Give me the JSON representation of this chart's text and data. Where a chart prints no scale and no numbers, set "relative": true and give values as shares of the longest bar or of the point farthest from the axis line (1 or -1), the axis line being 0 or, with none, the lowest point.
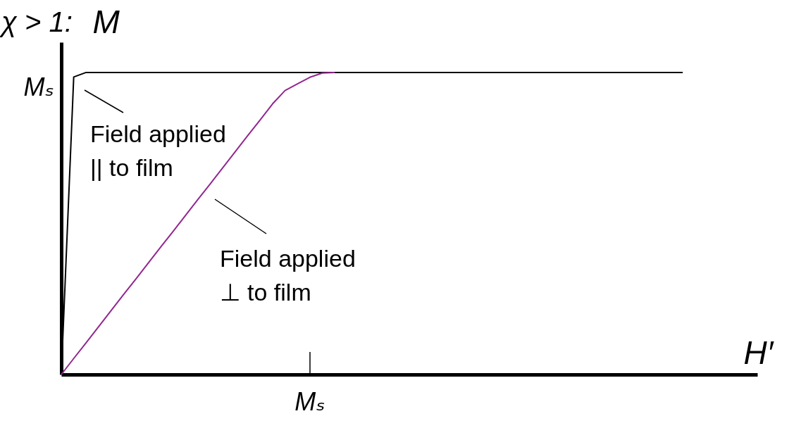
{
  "chart_data": {
    "type": "line",
    "title": "χ > 1:",
    "xlabel": "H′",
    "ylabel": "M",
    "relative": true,
    "categories": [
      null,
      null,
      null,
      null,
      null,
      null,
      null,
      null,
      null,
      null,
      null,
      null,
      null,
      null,
      null,
      null,
      null,
      null,
      null,
      null,
      null,
      null,
      null,
      null,
      null,
      null,
      null,
      null,
      null,
      null,
      null,
      null,
      null,
      null,
      null,
      null,
      null,
      null,
      null,
      null,
      null,
      null,
      null,
      null,
      null,
      null,
      null,
      null,
      null,
      null,
      null,
      null,
      null,
      null,
      null,
      null,
      null
    ],
    "series": [
      {
        "color": "#000000",
        "values": [
          0,
          0.985,
          1.0,
          1.0,
          1.0,
          1.0,
          1.0,
          1.0,
          1.0,
          1.0,
          1.0,
          1.0,
          1.0,
          1.0,
          1.0,
          1.0,
          1.0,
          1.0,
          1.0,
          1.0,
          1.0,
          1.0,
          1.0,
          1.0,
          1.0,
          1.0,
          1.0,
          1.0,
          1.0,
          1.0,
          1.0,
          1.0,
          1.0,
          1.0,
          1.0,
          1.0,
          1.0,
          1.0,
          1.0,
          1.0,
          1.0,
          1.0,
          1.0,
          1.0,
          1.0,
          1.0,
          1.0,
          1.0,
          1.0,
          1.0,
          1.0,
          null,
          null,
          null,
          null,
          null,
          null
        ]
      },
      {
        "color": "#92278f",
        "values": [
          0,
          0.053,
          0.105,
          0.158,
          0.211,
          0.264,
          0.316,
          0.369,
          0.422,
          0.474,
          0.527,
          0.58,
          0.632,
          0.685,
          0.738,
          0.791,
          0.843,
          0.896,
          0.94,
          0.962,
          0.984,
          0.998,
          1.0,
          null,
          null,
          null,
          null,
          null,
          null,
          null,
          null,
          null,
          null,
          null,
          null,
          null,
          null,
          null,
          null,
          null,
          null,
          null,
          null,
          null,
          null,
          null,
          null,
          null,
          null,
          null,
          null,
          null,
          null,
          null,
          null,
          null,
          null
        ]
      }
    ],
    "annotations": [
      "Field applied\n|| to film",
      "Field applied\n⊥ to film",
      "Mₛ",
      "Mₛ"
    ],
    "legend": false,
    "marker": "none",
    "line_style": "solid"
  }
}
